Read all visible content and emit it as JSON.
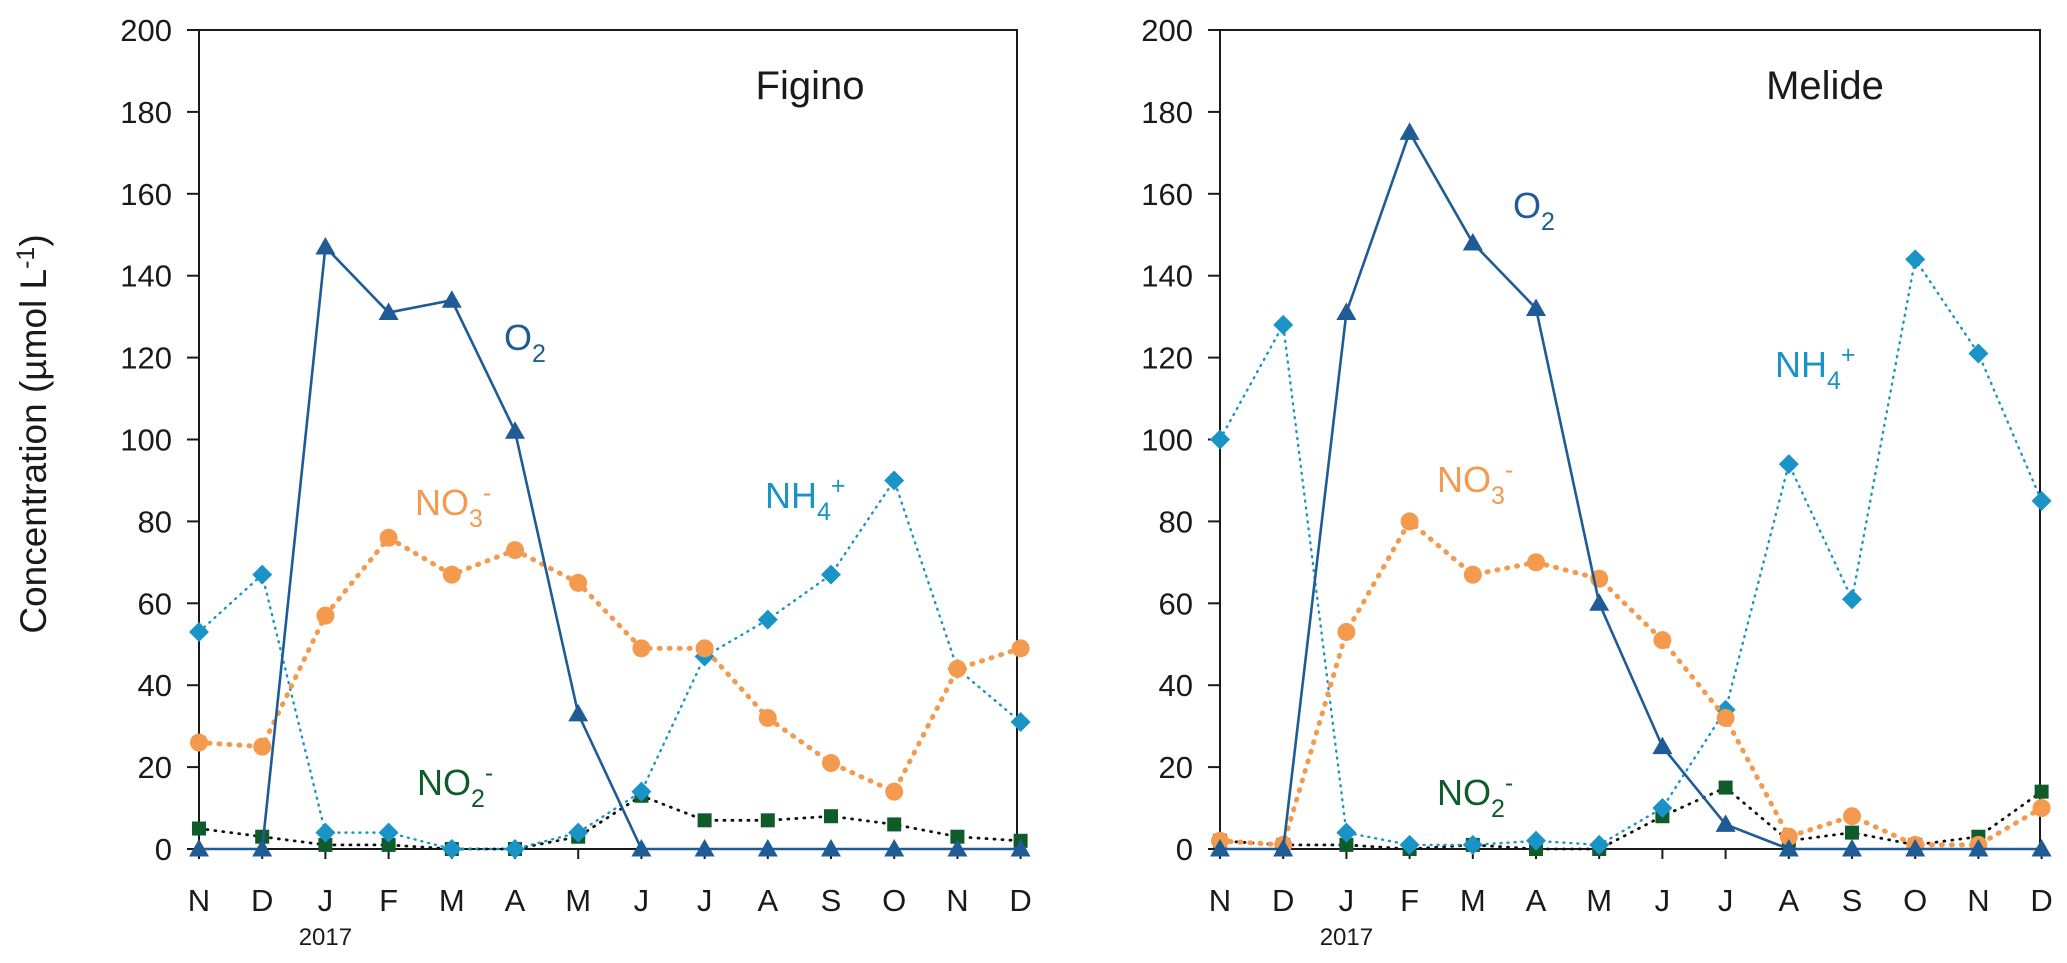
{
  "ylabel": "Concentration (µmol L⁻¹)",
  "ylabel_parts": {
    "main": "Concentration (µmol L",
    "sup": "-1",
    "close": ")"
  },
  "y_ticks": [
    "0",
    "20",
    "40",
    "60",
    "80",
    "100",
    "120",
    "140",
    "160",
    "180",
    "200"
  ],
  "x_tick_labels": [
    "N",
    "D",
    "J",
    "F",
    "M",
    "A",
    "M",
    "J",
    "J",
    "A",
    "S",
    "O",
    "N",
    "D"
  ],
  "year_label": "2017",
  "colors": {
    "O2": "#1f5b94",
    "NO3": "#f39a4f",
    "NH4": "#1a93c6",
    "NO2": "#0f5b2a",
    "axis": "#1a1a1a"
  },
  "chart_data": [
    {
      "type": "line",
      "title": "Figino",
      "ylabel": "Concentration (µmol L⁻¹)",
      "ylim": [
        0,
        200
      ],
      "grid": false,
      "categories": [
        "N",
        "D",
        "J",
        "F",
        "M",
        "A",
        "M",
        "J",
        "J",
        "A",
        "S",
        "O",
        "N",
        "D"
      ],
      "series": [
        {
          "key": "O2",
          "name": "O2",
          "label_main": "O",
          "label_sub": "2",
          "label_sup": "",
          "marker": "triangle",
          "style": "solid",
          "values": [
            0,
            0,
            147,
            131,
            134,
            102,
            33,
            0,
            0,
            0,
            0,
            0,
            0,
            0
          ]
        },
        {
          "key": "NO3",
          "name": "NO3-",
          "label_main": "NO",
          "label_sub": "3",
          "label_sup": "-",
          "marker": "circle",
          "style": "dotted-thick",
          "values": [
            26,
            25,
            57,
            76,
            67,
            73,
            65,
            49,
            49,
            32,
            21,
            14,
            44,
            49
          ]
        },
        {
          "key": "NH4",
          "name": "NH4+",
          "label_main": "NH",
          "label_sub": "4",
          "label_sup": "+",
          "marker": "diamond",
          "style": "dotted",
          "values": [
            53,
            67,
            4,
            4,
            0,
            0,
            4,
            14,
            47,
            56,
            67,
            90,
            44,
            31
          ]
        },
        {
          "key": "NO2",
          "name": "NO2-",
          "label_main": "NO",
          "label_sub": "2",
          "label_sup": "-",
          "marker": "square",
          "style": "dotted-black",
          "values": [
            5,
            3,
            1,
            1,
            0,
            0,
            3,
            13,
            7,
            7,
            8,
            6,
            3,
            2
          ]
        }
      ]
    },
    {
      "type": "line",
      "title": "Melide",
      "ylim": [
        0,
        200
      ],
      "grid": false,
      "categories": [
        "N",
        "D",
        "J",
        "F",
        "M",
        "A",
        "M",
        "J",
        "J",
        "A",
        "S",
        "O",
        "N",
        "D"
      ],
      "series": [
        {
          "key": "O2",
          "name": "O2",
          "label_main": "O",
          "label_sub": "2",
          "label_sup": "",
          "marker": "triangle",
          "style": "solid",
          "values": [
            0,
            0,
            131,
            175,
            148,
            132,
            60,
            25,
            6,
            0,
            0,
            0,
            0,
            0
          ]
        },
        {
          "key": "NO3",
          "name": "NO3-",
          "label_main": "NO",
          "label_sub": "3",
          "label_sup": "-",
          "marker": "circle",
          "style": "dotted-thick",
          "values": [
            2,
            1,
            53,
            80,
            67,
            70,
            66,
            51,
            32,
            3,
            8,
            1,
            1,
            10
          ]
        },
        {
          "key": "NH4",
          "name": "NH4+",
          "label_main": "NH",
          "label_sub": "4",
          "label_sup": "+",
          "marker": "diamond",
          "style": "dotted",
          "values": [
            100,
            128,
            4,
            1,
            1,
            2,
            1,
            10,
            34,
            94,
            61,
            144,
            121,
            85
          ]
        },
        {
          "key": "NO2",
          "name": "NO2-",
          "label_main": "NO",
          "label_sub": "2",
          "label_sup": "-",
          "marker": "square",
          "style": "dotted-black",
          "values": [
            2,
            1,
            1,
            0,
            1,
            0,
            0,
            8,
            15,
            2,
            4,
            1,
            3,
            14
          ]
        }
      ]
    }
  ]
}
